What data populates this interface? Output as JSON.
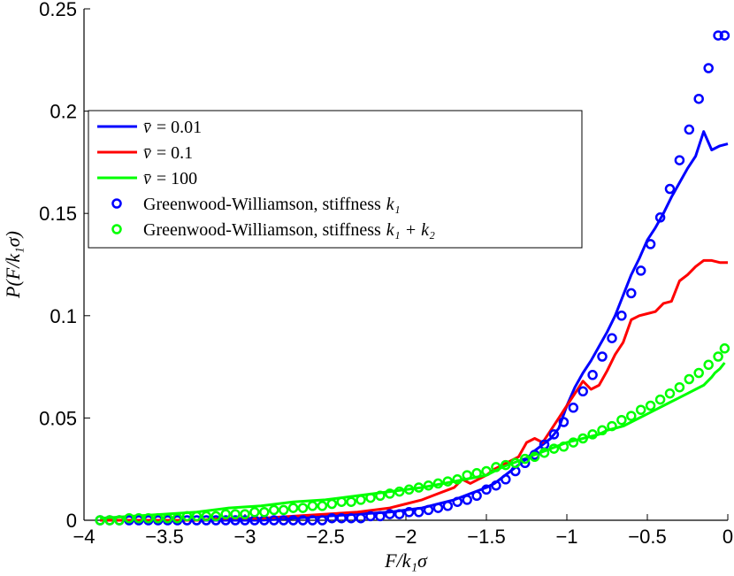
{
  "chart_data": {
    "type": "line",
    "xlabel": "F/k₁σ",
    "ylabel": "P(F/k₁σ)",
    "xlim": [
      -4,
      0
    ],
    "ylim": [
      0,
      0.25
    ],
    "xticks": [
      -4,
      -3.5,
      -3,
      -2.5,
      -2,
      -1.5,
      -1,
      -0.5,
      0
    ],
    "xtick_labels": [
      "−4",
      "−3.5",
      "−3",
      "−2.5",
      "−2",
      "−1.5",
      "−1",
      "−0.5",
      "0"
    ],
    "yticks": [
      0,
      0.05,
      0.1,
      0.15,
      0.2,
      0.25
    ],
    "ytick_labels": [
      "0",
      "0.05",
      "0.1",
      "0.15",
      "0.2",
      "0.25"
    ],
    "grid": false,
    "legend_position": "upper-left",
    "series": [
      {
        "name": "v̄ = 0.01",
        "style": "line",
        "color": "#0000ff",
        "x": [
          -3.9,
          -3.7,
          -3.5,
          -3.3,
          -3.1,
          -2.9,
          -2.7,
          -2.5,
          -2.3,
          -2.1,
          -2.0,
          -1.9,
          -1.8,
          -1.7,
          -1.6,
          -1.5,
          -1.45,
          -1.4,
          -1.35,
          -1.3,
          -1.25,
          -1.2,
          -1.15,
          -1.1,
          -1.05,
          -1.0,
          -0.95,
          -0.9,
          -0.85,
          -0.8,
          -0.75,
          -0.7,
          -0.65,
          -0.6,
          -0.55,
          -0.5,
          -0.45,
          -0.4,
          -0.35,
          -0.3,
          -0.25,
          -0.2,
          -0.15,
          -0.1,
          -0.05,
          0.0
        ],
        "y": [
          0.0,
          0.0,
          0.0,
          0.0,
          0.0,
          0.0,
          0.001,
          0.002,
          0.003,
          0.004,
          0.005,
          0.006,
          0.008,
          0.01,
          0.013,
          0.016,
          0.018,
          0.021,
          0.024,
          0.027,
          0.03,
          0.034,
          0.037,
          0.04,
          0.045,
          0.056,
          0.065,
          0.072,
          0.078,
          0.085,
          0.092,
          0.1,
          0.11,
          0.12,
          0.128,
          0.137,
          0.143,
          0.15,
          0.158,
          0.165,
          0.172,
          0.178,
          0.19,
          0.181,
          0.183,
          0.184
        ]
      },
      {
        "name": "v̄ = 0.1",
        "style": "line",
        "color": "#ff0000",
        "x": [
          -3.9,
          -3.7,
          -3.5,
          -3.3,
          -3.1,
          -2.9,
          -2.7,
          -2.5,
          -2.3,
          -2.1,
          -2.0,
          -1.9,
          -1.8,
          -1.7,
          -1.65,
          -1.6,
          -1.5,
          -1.45,
          -1.4,
          -1.35,
          -1.3,
          -1.25,
          -1.2,
          -1.15,
          -1.1,
          -1.05,
          -1.0,
          -0.95,
          -0.9,
          -0.85,
          -0.8,
          -0.75,
          -0.7,
          -0.65,
          -0.6,
          -0.55,
          -0.5,
          -0.45,
          -0.4,
          -0.35,
          -0.3,
          -0.25,
          -0.2,
          -0.15,
          -0.1,
          -0.05,
          0.0
        ],
        "y": [
          0.0,
          0.0,
          0.0,
          0.0,
          0.001,
          0.001,
          0.002,
          0.003,
          0.004,
          0.006,
          0.008,
          0.01,
          0.013,
          0.016,
          0.02,
          0.018,
          0.022,
          0.025,
          0.027,
          0.029,
          0.031,
          0.038,
          0.04,
          0.038,
          0.044,
          0.05,
          0.056,
          0.062,
          0.068,
          0.064,
          0.066,
          0.073,
          0.081,
          0.087,
          0.098,
          0.1,
          0.101,
          0.102,
          0.106,
          0.107,
          0.117,
          0.12,
          0.124,
          0.127,
          0.127,
          0.126,
          0.126
        ]
      },
      {
        "name": "v̄ = 100",
        "style": "line",
        "color": "#00ff00",
        "x": [
          -3.9,
          -3.7,
          -3.5,
          -3.3,
          -3.1,
          -2.9,
          -2.7,
          -2.5,
          -2.3,
          -2.1,
          -1.9,
          -1.7,
          -1.5,
          -1.4,
          -1.3,
          -1.2,
          -1.1,
          -1.0,
          -0.9,
          -0.8,
          -0.75,
          -0.7,
          -0.65,
          -0.6,
          -0.55,
          -0.5,
          -0.45,
          -0.4,
          -0.35,
          -0.3,
          -0.25,
          -0.2,
          -0.15,
          -0.1,
          -0.08,
          -0.05,
          -0.02
        ],
        "y": [
          0.001,
          0.002,
          0.003,
          0.004,
          0.006,
          0.007,
          0.009,
          0.01,
          0.012,
          0.014,
          0.016,
          0.019,
          0.022,
          0.026,
          0.029,
          0.032,
          0.035,
          0.038,
          0.04,
          0.042,
          0.044,
          0.045,
          0.046,
          0.048,
          0.05,
          0.052,
          0.054,
          0.056,
          0.058,
          0.06,
          0.062,
          0.064,
          0.066,
          0.07,
          0.072,
          0.074,
          0.077
        ]
      },
      {
        "name": "Greenwood-Williamson, stiffness k₁",
        "style": "markers",
        "color": "#0000ff",
        "x": [
          -3.9,
          -3.84,
          -3.78,
          -3.72,
          -3.66,
          -3.6,
          -3.54,
          -3.48,
          -3.42,
          -3.36,
          -3.3,
          -3.24,
          -3.18,
          -3.12,
          -3.06,
          -3.0,
          -2.94,
          -2.88,
          -2.82,
          -2.76,
          -2.7,
          -2.64,
          -2.58,
          -2.52,
          -2.46,
          -2.4,
          -2.34,
          -2.28,
          -2.22,
          -2.16,
          -2.1,
          -2.04,
          -1.98,
          -1.92,
          -1.86,
          -1.8,
          -1.74,
          -1.68,
          -1.62,
          -1.56,
          -1.5,
          -1.44,
          -1.38,
          -1.32,
          -1.26,
          -1.2,
          -1.14,
          -1.08,
          -1.02,
          -0.96,
          -0.9,
          -0.84,
          -0.78,
          -0.72,
          -0.66,
          -0.6,
          -0.54,
          -0.48,
          -0.42,
          -0.36,
          -0.3,
          -0.24,
          -0.18,
          -0.12,
          -0.06,
          -0.02
        ],
        "y": [
          0.0,
          0.0,
          0.0,
          0.0,
          0.0,
          0.0,
          0.0,
          0.0,
          0.0,
          0.0,
          0.0,
          0.0,
          0.0,
          0.0,
          0.0,
          0.0,
          0.0,
          0.0,
          0.0,
          0.0,
          0.0,
          0.0,
          0.0,
          0.0,
          0.001,
          0.001,
          0.001,
          0.001,
          0.002,
          0.002,
          0.003,
          0.003,
          0.004,
          0.004,
          0.005,
          0.006,
          0.007,
          0.009,
          0.01,
          0.012,
          0.015,
          0.017,
          0.02,
          0.024,
          0.028,
          0.032,
          0.037,
          0.042,
          0.048,
          0.055,
          0.063,
          0.071,
          0.08,
          0.089,
          0.1,
          0.111,
          0.122,
          0.135,
          0.148,
          0.162,
          0.176,
          0.191,
          0.206,
          0.221,
          0.237,
          0.237
        ]
      },
      {
        "name": "Greenwood-Williamson, stiffness k₁ + k₂",
        "style": "markers",
        "color": "#00ff00",
        "x": [
          -3.9,
          -3.84,
          -3.78,
          -3.72,
          -3.66,
          -3.6,
          -3.54,
          -3.48,
          -3.42,
          -3.36,
          -3.3,
          -3.24,
          -3.18,
          -3.12,
          -3.06,
          -3.0,
          -2.94,
          -2.88,
          -2.82,
          -2.76,
          -2.7,
          -2.64,
          -2.58,
          -2.52,
          -2.46,
          -2.4,
          -2.34,
          -2.28,
          -2.22,
          -2.16,
          -2.1,
          -2.04,
          -1.98,
          -1.92,
          -1.86,
          -1.8,
          -1.74,
          -1.68,
          -1.62,
          -1.56,
          -1.5,
          -1.44,
          -1.38,
          -1.32,
          -1.26,
          -1.2,
          -1.14,
          -1.08,
          -1.02,
          -0.96,
          -0.9,
          -0.84,
          -0.78,
          -0.72,
          -0.66,
          -0.6,
          -0.54,
          -0.48,
          -0.42,
          -0.36,
          -0.3,
          -0.24,
          -0.18,
          -0.12,
          -0.06,
          -0.02
        ],
        "y": [
          0.0,
          0.0,
          0.0,
          0.001,
          0.001,
          0.001,
          0.001,
          0.001,
          0.001,
          0.002,
          0.002,
          0.002,
          0.002,
          0.003,
          0.003,
          0.003,
          0.004,
          0.004,
          0.005,
          0.005,
          0.006,
          0.006,
          0.007,
          0.007,
          0.008,
          0.009,
          0.009,
          0.01,
          0.011,
          0.012,
          0.013,
          0.014,
          0.015,
          0.016,
          0.017,
          0.018,
          0.019,
          0.02,
          0.022,
          0.023,
          0.024,
          0.026,
          0.027,
          0.028,
          0.03,
          0.031,
          0.033,
          0.035,
          0.036,
          0.038,
          0.04,
          0.042,
          0.044,
          0.046,
          0.049,
          0.051,
          0.054,
          0.056,
          0.059,
          0.062,
          0.065,
          0.069,
          0.072,
          0.076,
          0.08,
          0.084
        ]
      }
    ],
    "legend": [
      {
        "label_var": "v̄",
        "label_value": "= 0.01",
        "color": "#0000ff",
        "marker": "line"
      },
      {
        "label_var": "v̄",
        "label_value": "= 0.1",
        "color": "#ff0000",
        "marker": "line"
      },
      {
        "label_var": "v̄",
        "label_value": "= 100",
        "color": "#00ff00",
        "marker": "line"
      },
      {
        "label_var": "Greenwood-Williamson, stiffness",
        "label_value": "k₁",
        "color": "#0000ff",
        "marker": "circle"
      },
      {
        "label_var": "Greenwood-Williamson, stiffness",
        "label_value": "k₁ + k₂",
        "color": "#00ff00",
        "marker": "circle"
      }
    ]
  }
}
